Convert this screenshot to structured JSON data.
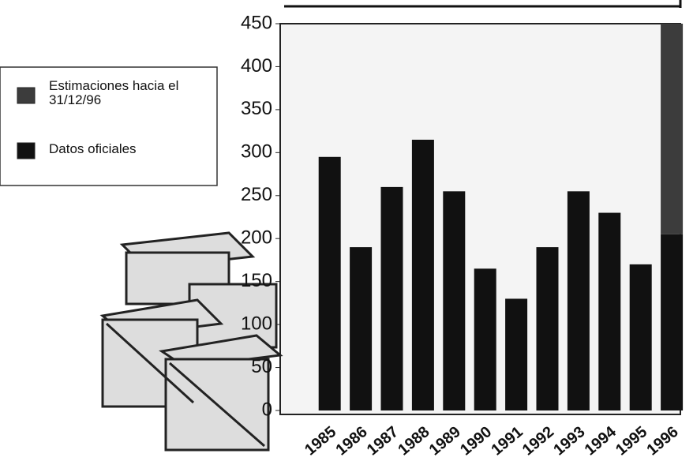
{
  "chart_data": {
    "type": "bar",
    "stacked": true,
    "categories": [
      "1985",
      "1986",
      "1987",
      "1988",
      "1989",
      "1990",
      "1991",
      "1992",
      "1993",
      "1994",
      "1995",
      "1996"
    ],
    "series": [
      {
        "name": "Datos oficiales",
        "color": "#111111",
        "values": [
          295,
          190,
          260,
          315,
          255,
          165,
          130,
          190,
          255,
          230,
          170,
          205
        ]
      },
      {
        "name": "Estimaciones hacia el 31/12/96",
        "color": "#3c3c3c",
        "values": [
          null,
          null,
          null,
          null,
          null,
          null,
          null,
          null,
          null,
          null,
          null,
          245
        ]
      }
    ],
    "ylim": [
      0,
      450
    ],
    "yticks": [
      0,
      50,
      100,
      150,
      200,
      250,
      300,
      350,
      400,
      450
    ],
    "grid": false
  }
}
